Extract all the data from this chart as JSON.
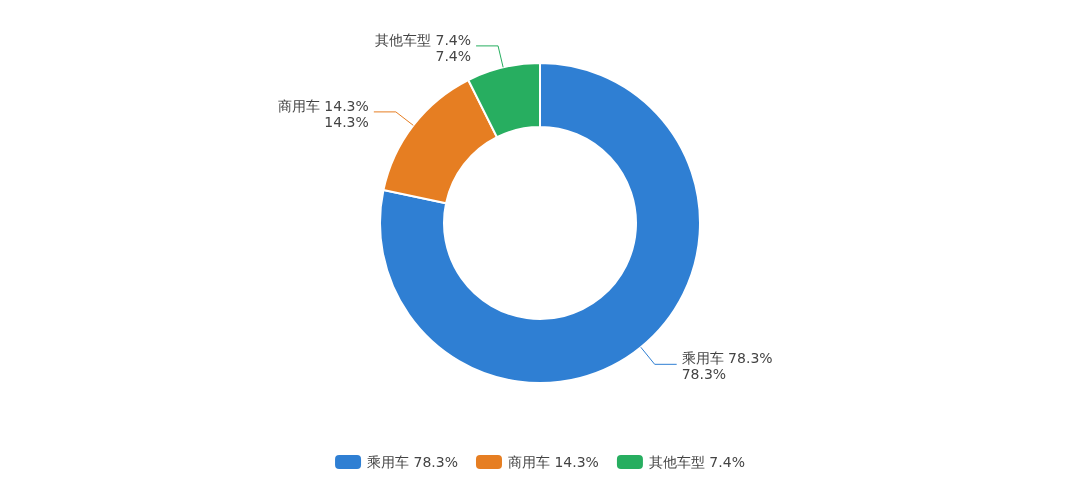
{
  "chart_data": {
    "type": "donut",
    "categories": [
      "乘用车 78.3%",
      "商用车 14.3%",
      "其他车型 7.4%"
    ],
    "values": [
      78.3,
      14.3,
      7.4
    ],
    "colors": [
      "#2f7fd3",
      "#e67e22",
      "#27ae60"
    ],
    "value_labels": [
      "78.3%",
      "14.3%",
      "7.4%"
    ],
    "legend": "bottom"
  }
}
